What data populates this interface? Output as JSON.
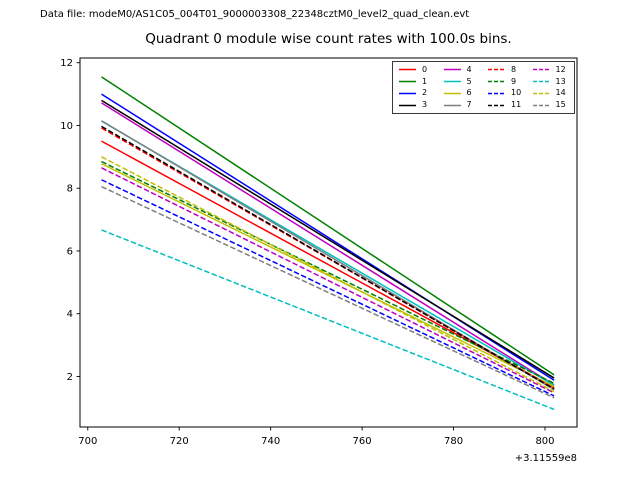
{
  "header": {
    "data_file_label": "Data file: modeM0/AS1C05_004T01_9000003308_22348cztM0_level2_quad_clean.evt"
  },
  "chart_data": {
    "type": "line",
    "title": "Quadrant 0 module wise count rates with 100.0s bins.",
    "xlabel": "",
    "ylabel": "",
    "x_offset_text": "+3.11559e8",
    "xlim": [
      698.3,
      807.0
    ],
    "ylim": [
      0.39,
      12.15
    ],
    "xticks": [
      700,
      720,
      740,
      760,
      780,
      800
    ],
    "yticks": [
      2,
      4,
      6,
      8,
      10,
      12
    ],
    "grid": false,
    "legend_position": "upper-right",
    "legend_fill_order": "column-major",
    "x": [
      703,
      802
    ],
    "series": [
      {
        "name": "0",
        "color": "#ff0000",
        "dashed": false,
        "values": [
          9.5,
          1.65
        ]
      },
      {
        "name": "1",
        "color": "#008000",
        "dashed": false,
        "values": [
          11.55,
          2.05
        ]
      },
      {
        "name": "2",
        "color": "#0000ff",
        "dashed": false,
        "values": [
          11.0,
          1.88
        ]
      },
      {
        "name": "3",
        "color": "#000000",
        "dashed": false,
        "values": [
          10.8,
          1.95
        ]
      },
      {
        "name": "4",
        "color": "#bf00bf",
        "dashed": false,
        "values": [
          10.72,
          1.73
        ]
      },
      {
        "name": "5",
        "color": "#00bfbf",
        "dashed": false,
        "values": [
          10.14,
          1.72
        ]
      },
      {
        "name": "6",
        "color": "#bfbf00",
        "dashed": false,
        "values": [
          8.78,
          1.68
        ]
      },
      {
        "name": "7",
        "color": "#7f7f7f",
        "dashed": false,
        "values": [
          10.15,
          1.58
        ]
      },
      {
        "name": "8",
        "color": "#ff0000",
        "dashed": true,
        "values": [
          9.92,
          1.62
        ]
      },
      {
        "name": "9",
        "color": "#008000",
        "dashed": true,
        "values": [
          8.85,
          1.78
        ]
      },
      {
        "name": "10",
        "color": "#0000ff",
        "dashed": true,
        "values": [
          8.27,
          1.38
        ]
      },
      {
        "name": "11",
        "color": "#000000",
        "dashed": true,
        "values": [
          9.97,
          1.6
        ]
      },
      {
        "name": "12",
        "color": "#bf00bf",
        "dashed": true,
        "values": [
          8.65,
          1.48
        ]
      },
      {
        "name": "13",
        "color": "#00bfbf",
        "dashed": true,
        "values": [
          6.67,
          0.95
        ]
      },
      {
        "name": "14",
        "color": "#bfbf00",
        "dashed": true,
        "values": [
          9.0,
          1.52
        ]
      },
      {
        "name": "15",
        "color": "#7f7f7f",
        "dashed": true,
        "values": [
          8.05,
          1.32
        ]
      }
    ]
  }
}
